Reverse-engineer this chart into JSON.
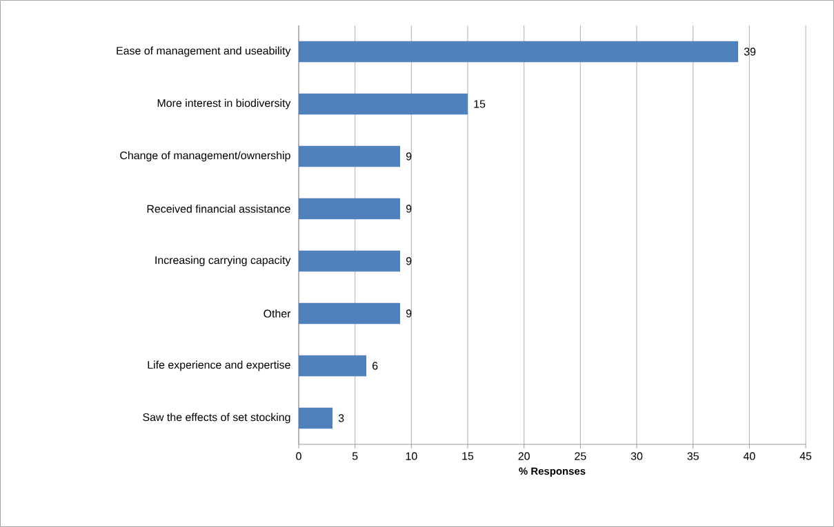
{
  "chart_data": {
    "type": "bar",
    "orientation": "horizontal",
    "xlabel": "% Responses",
    "categories": [
      "Ease of management and useability",
      "More interest in biodiversity",
      "Change of management/ownership",
      "Received financial assistance",
      "Increasing carrying capacity",
      "Other",
      "Life experience and expertise",
      "Saw the effects of set stocking"
    ],
    "values": [
      39,
      15,
      9,
      9,
      9,
      9,
      6,
      3
    ],
    "color": "#4f81bd",
    "data_labels": true,
    "grid": "x",
    "xlim": [
      0,
      45
    ],
    "xticks": [
      0,
      5,
      10,
      15,
      20,
      25,
      30,
      35,
      40,
      45
    ]
  }
}
